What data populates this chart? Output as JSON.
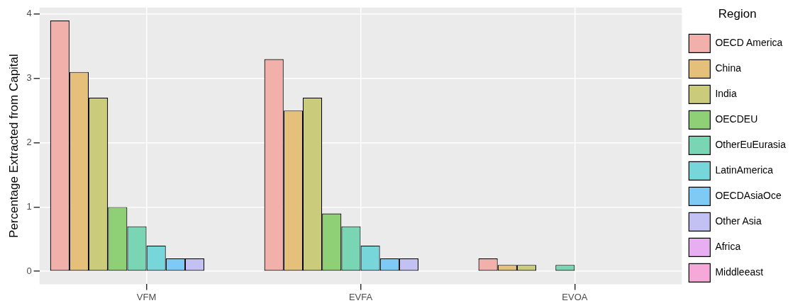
{
  "chart_data": {
    "type": "bar",
    "ylabel": "Percentage Extracted from Capital",
    "legend_title": "Region",
    "categories": [
      "VFM",
      "EVFA",
      "EVOA"
    ],
    "series": [
      {
        "name": "OECD America",
        "color": "#f2b0aa",
        "values": [
          3.9,
          3.3,
          0.2
        ]
      },
      {
        "name": "China",
        "color": "#e4c07a",
        "values": [
          3.1,
          2.5,
          0.1
        ]
      },
      {
        "name": "India",
        "color": "#cbcb7c",
        "values": [
          2.7,
          2.7,
          0.1
        ]
      },
      {
        "name": "OECDEU",
        "color": "#8fcf75",
        "values": [
          1.0,
          0.9,
          0
        ]
      },
      {
        "name": "OtherEuEurasia",
        "color": "#7ad5b4",
        "values": [
          0.7,
          0.7,
          0.1
        ]
      },
      {
        "name": "LatinAmerica",
        "color": "#76d6da",
        "values": [
          0.4,
          0.4,
          0
        ]
      },
      {
        "name": "OECDAsiaOce",
        "color": "#7fcaf5",
        "values": [
          0.2,
          0.2,
          0
        ]
      },
      {
        "name": "Other Asia",
        "color": "#c3c0f4",
        "values": [
          0.2,
          0.2,
          0
        ]
      },
      {
        "name": "Africa",
        "color": "#e8aef2",
        "values": [
          0,
          0,
          0
        ]
      },
      {
        "name": "Middleeast",
        "color": "#f6a8d9",
        "values": [
          0,
          0,
          0
        ]
      }
    ],
    "ylim": [
      -0.2,
      4.1
    ],
    "yticks": [
      0,
      1,
      2,
      3,
      4
    ],
    "grid": true,
    "legend": "right"
  }
}
